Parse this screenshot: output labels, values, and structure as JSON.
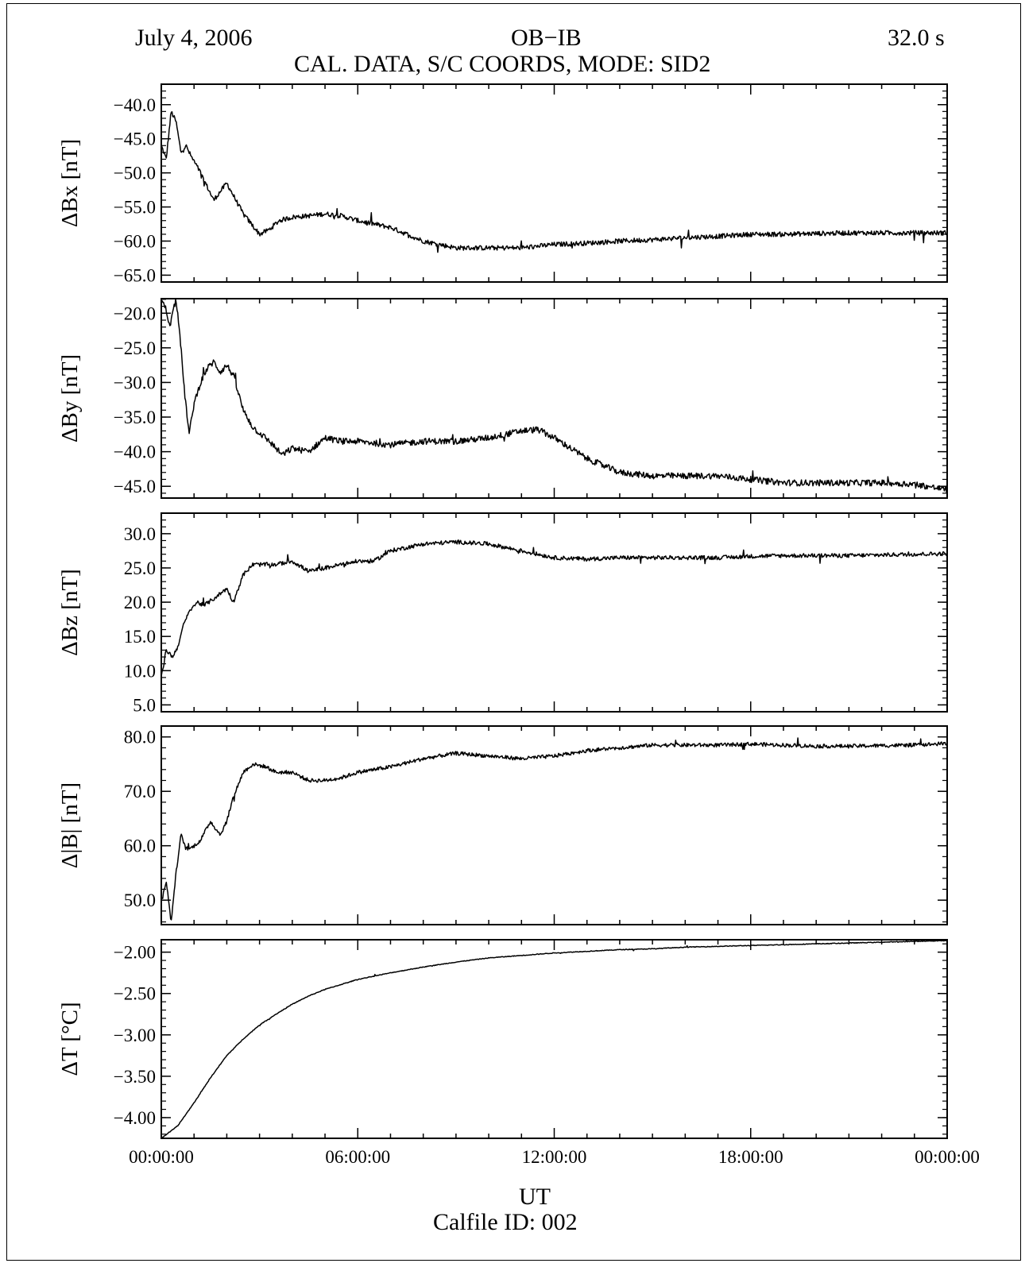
{
  "header": {
    "date": "July 4, 2006",
    "sensor": "OB−IB",
    "sample_rate": "32.0 s",
    "subtitle": "CAL. DATA, S/C COORDS, MODE: SID2"
  },
  "footer": {
    "xlabel": "UT",
    "calfile": "Calfile ID: 002"
  },
  "x_tick_labels": [
    "00:00:00",
    "06:00:00",
    "12:00:00",
    "18:00:00",
    "00:00:00"
  ],
  "chart_data": [
    {
      "type": "line",
      "ylabel": "ΔBx [nT]",
      "xlim_hours": [
        0,
        24
      ],
      "ylim": [
        -66,
        -37
      ],
      "yticks": [
        -65,
        -60,
        -55,
        -50,
        -45,
        -40
      ],
      "ytick_labels": [
        "−65.0",
        "−60.0",
        "−55.0",
        "−50.0",
        "−45.0",
        "−40.0"
      ],
      "noise": 0.35,
      "series": [
        {
          "x": [
            0,
            0.15,
            0.3,
            0.45,
            0.6,
            0.75,
            0.9,
            1.2,
            1.6,
            2.0,
            2.5,
            3.0,
            3.3,
            3.6,
            4.0,
            4.5,
            5.0,
            5.5,
            6.0,
            6.5,
            7.0,
            8.0,
            9.0,
            10.0,
            11.0,
            12.0,
            13.0,
            14.0,
            15.0,
            16.0,
            17.0,
            18.0,
            19.0,
            20.0,
            21.0,
            22.0,
            23.0,
            24.0
          ],
          "y": [
            -46.0,
            -48.0,
            -41.0,
            -42.5,
            -47.0,
            -46.0,
            -47.5,
            -50.0,
            -54.0,
            -51.5,
            -56.0,
            -59.0,
            -58.3,
            -57.0,
            -56.5,
            -56.3,
            -56.0,
            -56.3,
            -57.0,
            -57.5,
            -58.0,
            -60.0,
            -61.0,
            -61.0,
            -61.0,
            -60.5,
            -60.3,
            -60.0,
            -59.8,
            -59.5,
            -59.3,
            -59.0,
            -59.0,
            -58.9,
            -58.8,
            -58.8,
            -58.8,
            -58.8
          ]
        }
      ]
    },
    {
      "type": "line",
      "ylabel": "ΔBy [nT]",
      "xlim_hours": [
        0,
        24
      ],
      "ylim": [
        -46.7,
        -17.9
      ],
      "yticks": [
        -45,
        -40,
        -35,
        -30,
        -25,
        -20
      ],
      "ytick_labels": [
        "−45.0",
        "−40.0",
        "−35.0",
        "−30.0",
        "−25.0",
        "−20.0"
      ],
      "noise": 0.45,
      "series": [
        {
          "x": [
            0,
            0.15,
            0.25,
            0.35,
            0.45,
            0.55,
            0.7,
            0.85,
            1.0,
            1.2,
            1.4,
            1.6,
            1.8,
            2.0,
            2.2,
            2.5,
            2.8,
            3.3,
            3.7,
            4.0,
            4.5,
            5.0,
            5.5,
            6.0,
            7.0,
            8.0,
            9.0,
            10.0,
            11.0,
            11.5,
            12.0,
            13.0,
            14.0,
            15.0,
            16.0,
            17.0,
            18.0,
            19.0,
            20.0,
            21.0,
            22.0,
            23.0,
            24.0
          ],
          "y": [
            -18.0,
            -19.5,
            -22.0,
            -20.0,
            -18.0,
            -22.0,
            -31.0,
            -37.5,
            -33.0,
            -30.0,
            -28.0,
            -27.0,
            -28.5,
            -27.5,
            -29.0,
            -34.0,
            -36.5,
            -38.5,
            -40.5,
            -39.5,
            -40.0,
            -38.0,
            -38.5,
            -38.5,
            -39.0,
            -38.5,
            -38.5,
            -38.0,
            -37.0,
            -36.8,
            -38.0,
            -41.0,
            -43.0,
            -43.5,
            -43.5,
            -43.5,
            -44.0,
            -44.5,
            -44.5,
            -44.5,
            -44.5,
            -44.7,
            -45.5
          ]
        }
      ]
    },
    {
      "type": "line",
      "ylabel": "ΔBz [nT]",
      "xlim_hours": [
        0,
        24
      ],
      "ylim": [
        4.0,
        33.0
      ],
      "yticks": [
        5,
        10,
        15,
        20,
        25,
        30
      ],
      "ytick_labels": [
        "5.0",
        "10.0",
        "15.0",
        "20.0",
        "25.0",
        "30.0"
      ],
      "noise": 0.3,
      "series": [
        {
          "x": [
            0,
            0.15,
            0.35,
            0.5,
            0.7,
            0.9,
            1.1,
            1.3,
            1.6,
            2.0,
            2.2,
            2.5,
            2.8,
            3.1,
            3.5,
            4.0,
            4.5,
            5.0,
            5.5,
            6.0,
            6.5,
            7.0,
            8.0,
            9.0,
            10.0,
            11.0,
            12.0,
            13.0,
            14.0,
            15.0,
            16.0,
            17.0,
            18.0,
            19.0,
            20.0,
            21.0,
            22.0,
            23.0,
            24.0
          ],
          "y": [
            9.0,
            13.0,
            12.0,
            13.5,
            17.0,
            19.0,
            20.0,
            19.5,
            20.5,
            22.0,
            20.0,
            24.0,
            25.5,
            25.5,
            25.5,
            26.0,
            24.5,
            25.0,
            25.5,
            26.0,
            26.0,
            27.5,
            28.5,
            28.8,
            28.5,
            27.5,
            26.5,
            26.3,
            26.5,
            26.5,
            26.5,
            26.5,
            26.7,
            26.8,
            26.8,
            26.8,
            26.9,
            27.0,
            27.1
          ]
        }
      ]
    },
    {
      "type": "line",
      "ylabel": "Δ|B| [nT]",
      "xlim_hours": [
        0,
        24
      ],
      "ylim": [
        45.5,
        82.0
      ],
      "yticks": [
        50,
        60,
        70,
        80
      ],
      "ytick_labels": [
        "50.0",
        "60.0",
        "70.0",
        "80.0"
      ],
      "noise": 0.35,
      "series": [
        {
          "x": [
            0,
            0.15,
            0.3,
            0.45,
            0.6,
            0.75,
            0.9,
            1.2,
            1.5,
            1.8,
            2.0,
            2.2,
            2.5,
            2.8,
            3.2,
            3.5,
            4.0,
            4.5,
            5.0,
            5.5,
            6.0,
            7.0,
            8.0,
            9.0,
            10.0,
            11.0,
            12.0,
            13.0,
            14.0,
            15.0,
            16.0,
            17.0,
            18.0,
            19.0,
            20.0,
            21.0,
            22.0,
            23.0,
            24.0
          ],
          "y": [
            50.0,
            53.5,
            46.0,
            55.0,
            62.0,
            59.5,
            59.5,
            61.0,
            64.5,
            62.0,
            64.5,
            69.0,
            73.5,
            75.0,
            74.5,
            73.5,
            73.5,
            72.0,
            72.0,
            72.5,
            73.5,
            74.5,
            76.0,
            77.0,
            76.5,
            76.0,
            76.5,
            77.5,
            78.0,
            78.5,
            78.5,
            78.5,
            78.7,
            78.5,
            78.3,
            78.3,
            78.4,
            78.5,
            78.8
          ]
        }
      ]
    },
    {
      "type": "line",
      "ylabel": "ΔT [°C]",
      "xlim_hours": [
        0,
        24
      ],
      "ylim": [
        -4.25,
        -1.85
      ],
      "yticks": [
        -4.0,
        -3.5,
        -3.0,
        -2.5,
        -2.0
      ],
      "ytick_labels": [
        "−4.00",
        "−3.50",
        "−3.00",
        "−2.50",
        "−2.00"
      ],
      "noise": 0.004,
      "series": [
        {
          "x": [
            0,
            0.5,
            1.0,
            1.5,
            2.0,
            2.5,
            3.0,
            3.5,
            4.0,
            4.5,
            5.0,
            6.0,
            7.0,
            8.0,
            9.0,
            10.0,
            11.0,
            12.0,
            13.0,
            14.0,
            15.0,
            16.0,
            17.0,
            18.0,
            19.0,
            20.0,
            21.0,
            22.0,
            23.0,
            24.0
          ],
          "y": [
            -4.25,
            -4.1,
            -3.82,
            -3.52,
            -3.25,
            -3.05,
            -2.88,
            -2.75,
            -2.63,
            -2.53,
            -2.45,
            -2.33,
            -2.25,
            -2.18,
            -2.12,
            -2.07,
            -2.04,
            -2.01,
            -1.99,
            -1.97,
            -1.96,
            -1.94,
            -1.93,
            -1.92,
            -1.91,
            -1.9,
            -1.89,
            -1.88,
            -1.87,
            -1.86
          ]
        }
      ]
    }
  ]
}
